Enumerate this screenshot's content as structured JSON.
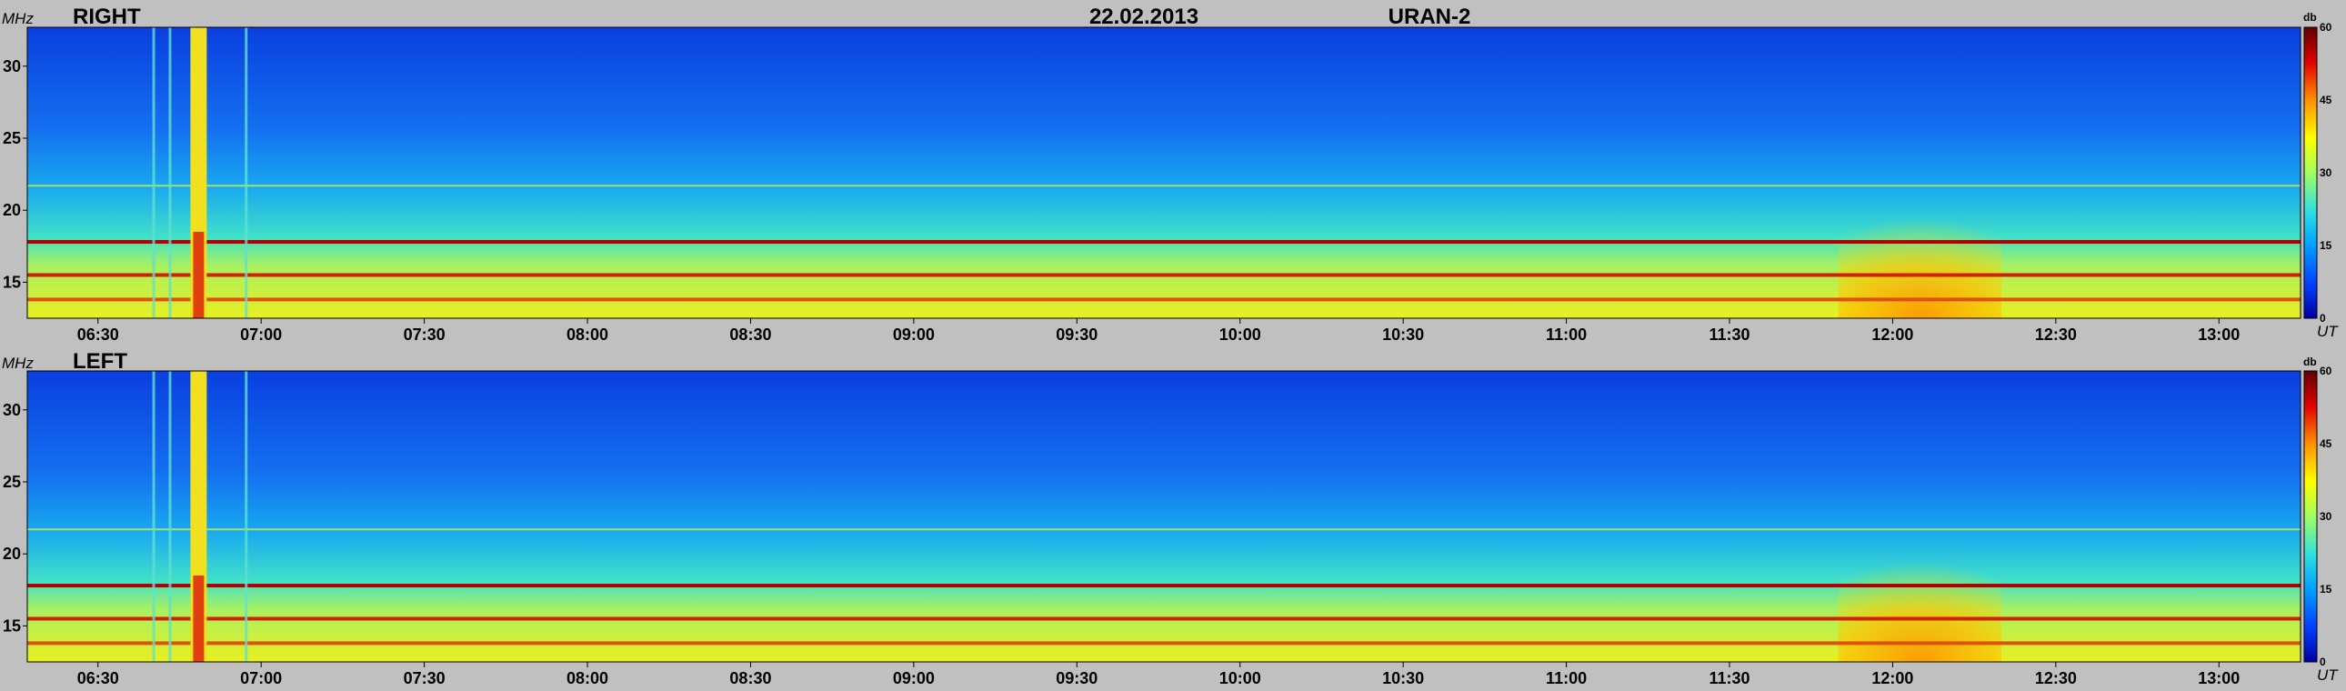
{
  "figure": {
    "date": "22.02.2013",
    "instrument": "URAN-2"
  },
  "chart_data": [
    {
      "type": "heatmap",
      "title": "RIGHT",
      "ylabel": "MHz",
      "xlabel": "UT",
      "x_ticks": [
        "06:30",
        "07:00",
        "07:30",
        "08:00",
        "08:30",
        "09:00",
        "09:30",
        "10:00",
        "10:30",
        "11:00",
        "11:30",
        "12:00",
        "12:30",
        "13:00"
      ],
      "x_range": [
        "06:17",
        "13:15"
      ],
      "y_ticks": [
        15,
        20,
        25,
        30
      ],
      "y_range": [
        12.5,
        32.7
      ],
      "colorbar": {
        "label": "db",
        "ticks": [
          0,
          15,
          30,
          45,
          60
        ],
        "range": [
          0,
          60
        ],
        "colors": [
          "#0000a0",
          "#0040ff",
          "#00a0ff",
          "#30e0e0",
          "#a0ff60",
          "#ffff00",
          "#ff9000",
          "#e00000",
          "#600000"
        ]
      },
      "bright_lines_mhz": [
        17.8,
        15.5,
        13.8
      ],
      "burst_ut": [
        "06:47",
        "06:50"
      ],
      "enhancement_ut": [
        "11:50",
        "12:20"
      ]
    },
    {
      "type": "heatmap",
      "title": "LEFT",
      "ylabel": "MHz",
      "xlabel": "UT",
      "x_ticks": [
        "06:30",
        "07:00",
        "07:30",
        "08:00",
        "08:30",
        "09:00",
        "09:30",
        "10:00",
        "10:30",
        "11:00",
        "11:30",
        "12:00",
        "12:30",
        "13:00"
      ],
      "x_range": [
        "06:17",
        "13:15"
      ],
      "y_ticks": [
        15,
        20,
        25,
        30
      ],
      "y_range": [
        12.5,
        32.7
      ],
      "colorbar": {
        "label": "db",
        "ticks": [
          0,
          15,
          30,
          45,
          60
        ],
        "range": [
          0,
          60
        ],
        "colors": [
          "#0000a0",
          "#0040ff",
          "#00a0ff",
          "#30e0e0",
          "#a0ff60",
          "#ffff00",
          "#ff9000",
          "#e00000",
          "#600000"
        ]
      },
      "bright_lines_mhz": [
        17.8,
        15.5,
        13.8
      ],
      "burst_ut": [
        "06:47",
        "06:50"
      ],
      "enhancement_ut": [
        "11:50",
        "12:20"
      ]
    }
  ]
}
